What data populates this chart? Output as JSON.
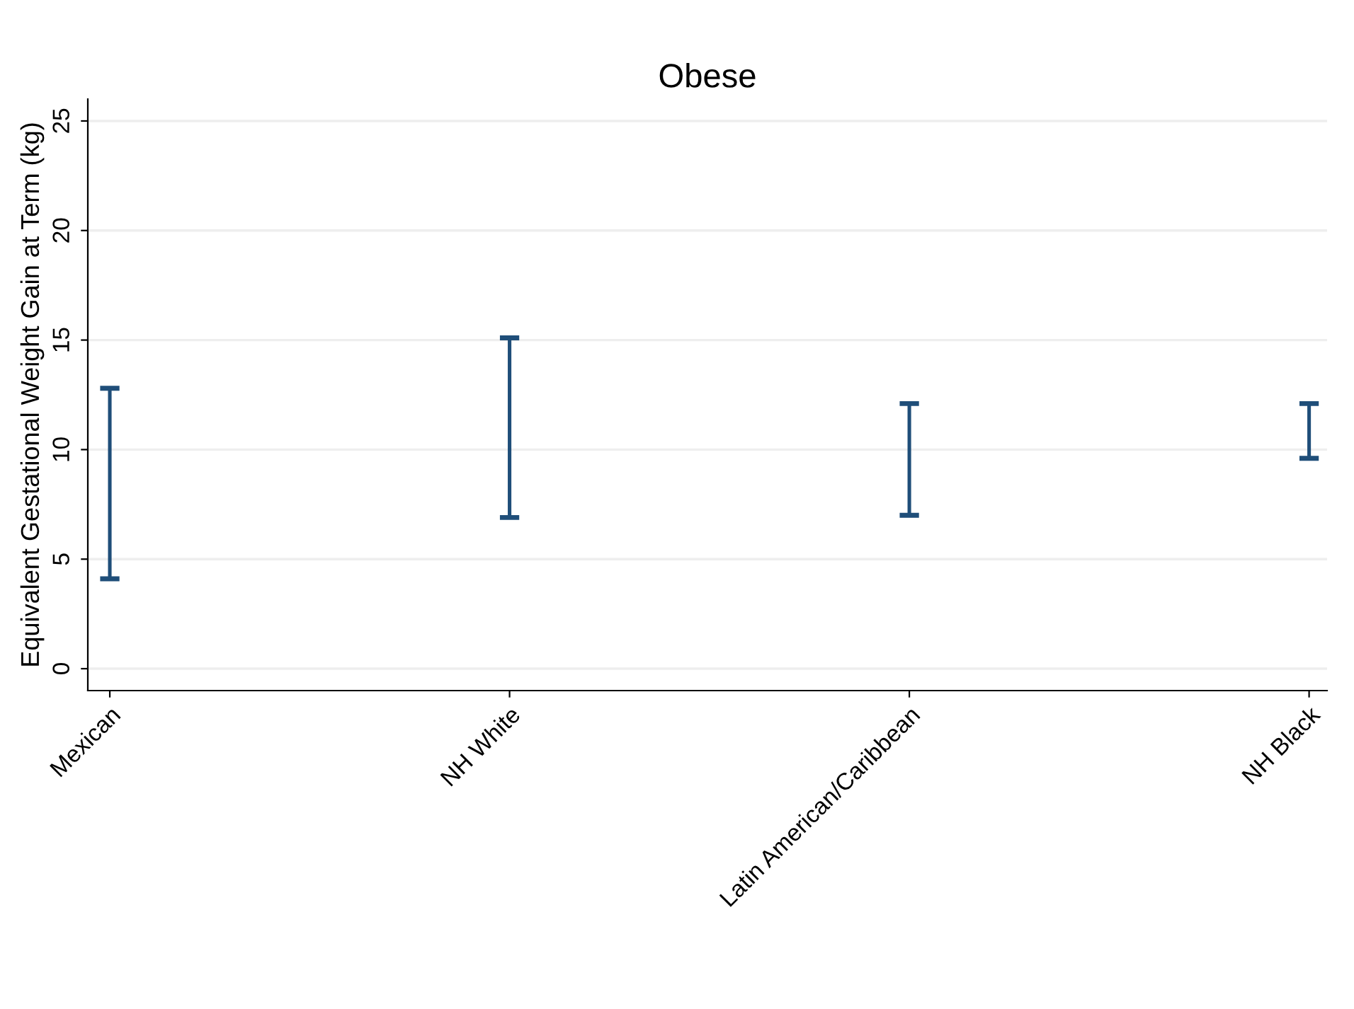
{
  "chart_data": {
    "type": "bar",
    "title": "Obese",
    "ylabel": "Equivalent Gestational Weight Gain at Term (kg)",
    "categories": [
      "Mexican",
      "NH White",
      "Latin American/Caribbean",
      "NH Black"
    ],
    "base": [
      4.1,
      6.9,
      7.0,
      9.6
    ],
    "values": [
      8.7,
      8.2,
      5.1,
      2.5
    ],
    "color": "#1f4e79",
    "ylim": [
      -1,
      26
    ],
    "yticks": [
      0,
      5,
      10,
      15,
      20,
      25
    ],
    "grid": "y"
  }
}
